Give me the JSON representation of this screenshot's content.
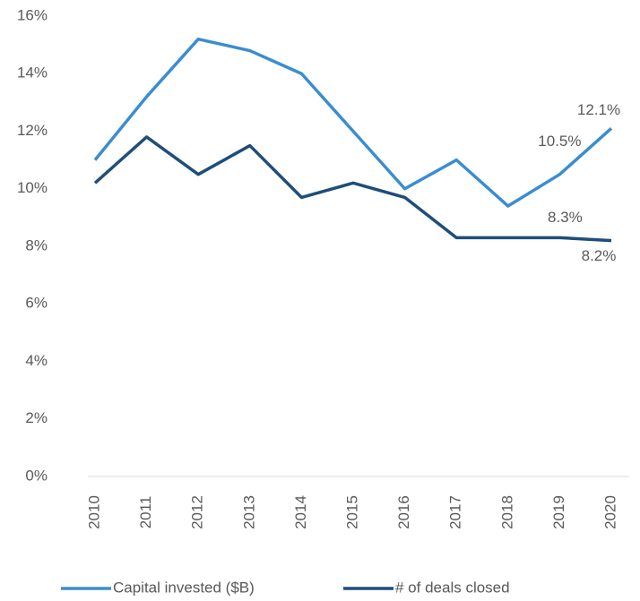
{
  "chart_data": {
    "type": "line",
    "categories": [
      "2010",
      "2011",
      "2012",
      "2013",
      "2014",
      "2015",
      "2016",
      "2017",
      "2018",
      "2019",
      "2020"
    ],
    "series": [
      {
        "name": "Capital invested ($B)",
        "color": "#3a8dd0",
        "values": [
          11.0,
          13.2,
          15.2,
          14.8,
          14.0,
          12.0,
          10.0,
          11.0,
          9.4,
          10.5,
          12.1
        ],
        "value_labels": [
          null,
          null,
          null,
          null,
          null,
          null,
          null,
          null,
          null,
          "10.5%",
          "12.1%"
        ]
      },
      {
        "name": "# of deals closed",
        "color": "#1e4e79",
        "values": [
          10.2,
          11.8,
          10.5,
          11.5,
          9.7,
          10.2,
          9.7,
          8.3,
          8.3,
          8.3,
          8.2
        ],
        "value_labels": [
          null,
          null,
          null,
          null,
          null,
          null,
          null,
          null,
          null,
          "8.3%",
          "8.2%"
        ]
      }
    ],
    "ylim": [
      0,
      16
    ],
    "yticks": [
      {
        "value": 0,
        "label": "0%"
      },
      {
        "value": 2,
        "label": "2%"
      },
      {
        "value": 4,
        "label": "4%"
      },
      {
        "value": 6,
        "label": "6%"
      },
      {
        "value": 8,
        "label": "8%"
      },
      {
        "value": 10,
        "label": "10%"
      },
      {
        "value": 12,
        "label": "12%"
      },
      {
        "value": 14,
        "label": "14%"
      },
      {
        "value": 16,
        "label": "16%"
      }
    ],
    "grid": false,
    "legend": "bottom"
  }
}
